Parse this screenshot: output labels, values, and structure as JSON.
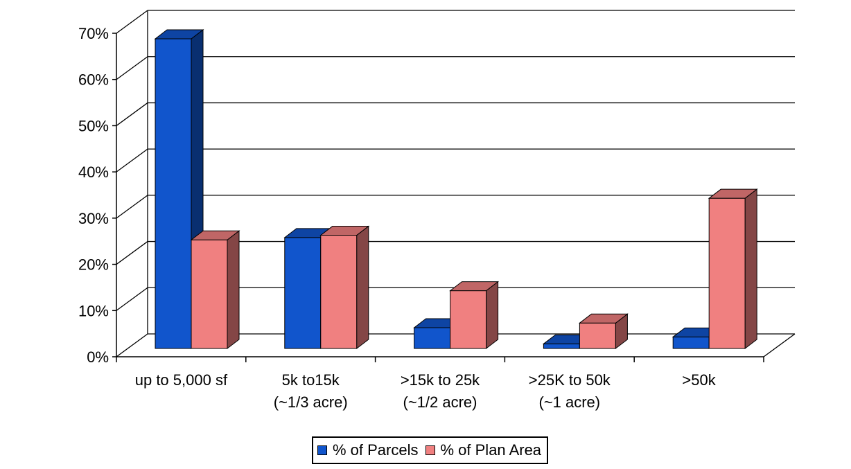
{
  "chart_data": {
    "type": "bar",
    "categories": [
      [
        "up to 5,000 sf"
      ],
      [
        "5k to15k",
        "(~1/3 acre)"
      ],
      [
        ">15k to 25k",
        "(~1/2 acre)"
      ],
      [
        ">25K to 50k",
        "(~1 acre)"
      ],
      [
        ">50k"
      ]
    ],
    "series": [
      {
        "name": "% of Parcels",
        "color": "#1155CC",
        "values": [
          67,
          24,
          4.5,
          1,
          2.5
        ]
      },
      {
        "name": "% of Plan Area",
        "color": "#F08080",
        "values": [
          23.5,
          24.5,
          12.5,
          5.5,
          32.5
        ]
      }
    ],
    "y_ticks": [
      "0%",
      "10%",
      "20%",
      "30%",
      "40%",
      "50%",
      "60%",
      "70%"
    ],
    "ylim": [
      0,
      70
    ],
    "grid": true,
    "legend_position": "bottom",
    "title": "",
    "xlabel": "",
    "ylabel": ""
  },
  "legend": {
    "items": [
      {
        "label": "% of Parcels"
      },
      {
        "label": "% of Plan Area"
      }
    ]
  }
}
